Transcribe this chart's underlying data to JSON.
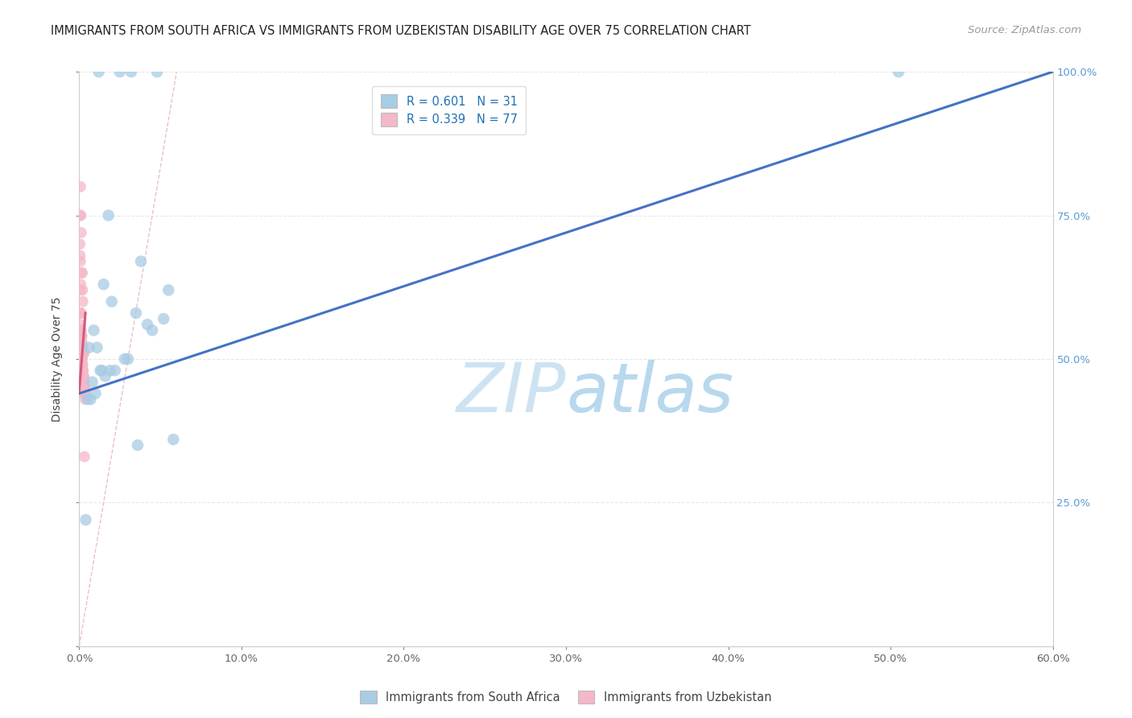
{
  "title": "IMMIGRANTS FROM SOUTH AFRICA VS IMMIGRANTS FROM UZBEKISTAN DISABILITY AGE OVER 75 CORRELATION CHART",
  "source": "Source: ZipAtlas.com",
  "ylabel_left": "Disability Age Over 75",
  "blue_R": 0.601,
  "blue_N": 31,
  "pink_R": 0.339,
  "pink_N": 77,
  "blue_color": "#a8cce4",
  "pink_color": "#f4b8c8",
  "blue_line_color": "#4472c4",
  "pink_line_color": "#d45a7a",
  "legend_blue_label": "Immigrants from South Africa",
  "legend_pink_label": "Immigrants from Uzbekistan",
  "blue_scatter_x": [
    1.2,
    4.8,
    3.2,
    2.5,
    1.8,
    3.8,
    5.5,
    2.0,
    1.5,
    0.9,
    1.1,
    0.6,
    2.8,
    3.5,
    5.2,
    4.2,
    1.4,
    0.7,
    1.0,
    0.5,
    2.2,
    3.0,
    4.5,
    1.6,
    0.8,
    5.8,
    3.6,
    1.3,
    0.4,
    50.5,
    1.9
  ],
  "blue_scatter_y": [
    100.0,
    100.0,
    100.0,
    100.0,
    75.0,
    67.0,
    62.0,
    60.0,
    63.0,
    55.0,
    52.0,
    52.0,
    50.0,
    58.0,
    57.0,
    56.0,
    48.0,
    43.0,
    44.0,
    43.0,
    48.0,
    50.0,
    55.0,
    47.0,
    46.0,
    36.0,
    35.0,
    48.0,
    22.0,
    100.0,
    48.0
  ],
  "pink_scatter_x": [
    0.08,
    0.05,
    0.1,
    0.12,
    0.15,
    0.18,
    0.2,
    0.22,
    0.08,
    0.06,
    0.14,
    0.16,
    0.25,
    0.3,
    0.1,
    0.04,
    0.07,
    0.09,
    0.11,
    0.13,
    0.17,
    0.19,
    0.21,
    0.08,
    0.06,
    0.12,
    0.15,
    0.18,
    0.22,
    0.25,
    0.3,
    0.08,
    0.1,
    0.14,
    0.16,
    0.2,
    0.22,
    0.26,
    0.28,
    0.05,
    0.09,
    0.11,
    0.13,
    0.17,
    0.19,
    0.23,
    0.27,
    0.29,
    0.33,
    0.35,
    0.06,
    0.08,
    0.12,
    0.14,
    0.18,
    0.2,
    0.24,
    0.28,
    0.32,
    0.34,
    0.07,
    0.11,
    0.13,
    0.15,
    0.19,
    0.21,
    0.25,
    0.29,
    0.31,
    0.36,
    0.08,
    0.1,
    0.14,
    0.16,
    0.22,
    0.26,
    0.32
  ],
  "pink_scatter_y": [
    80.0,
    75.0,
    75.0,
    72.0,
    65.0,
    65.0,
    62.0,
    60.0,
    58.0,
    55.0,
    54.0,
    53.0,
    52.0,
    51.0,
    50.0,
    70.0,
    67.0,
    63.0,
    58.0,
    55.0,
    54.0,
    52.0,
    51.0,
    50.0,
    49.0,
    48.0,
    47.0,
    46.0,
    46.0,
    45.0,
    44.0,
    55.0,
    52.0,
    51.0,
    50.0,
    49.0,
    48.0,
    47.0,
    46.0,
    68.0,
    58.0,
    54.0,
    52.0,
    50.0,
    49.0,
    48.0,
    47.0,
    46.0,
    45.0,
    44.0,
    62.0,
    56.0,
    53.0,
    51.0,
    50.0,
    48.0,
    47.0,
    46.0,
    45.0,
    44.0,
    58.0,
    54.0,
    52.0,
    50.0,
    49.0,
    48.0,
    47.0,
    46.0,
    44.0,
    43.0,
    55.0,
    52.0,
    51.0,
    50.0,
    48.0,
    46.0,
    33.0
  ],
  "blue_trend_x": [
    0.0,
    60.0
  ],
  "blue_trend_y": [
    44.0,
    100.0
  ],
  "pink_trend_x": [
    0.0,
    0.38
  ],
  "pink_trend_y": [
    44.5,
    58.0
  ],
  "diag_line_x": [
    0.0,
    6.0
  ],
  "diag_line_y": [
    0.0,
    100.0
  ],
  "watermark_zip": "ZIP",
  "watermark_atlas": "atlas",
  "watermark_color": "#ddeef8",
  "grid_color": "#e8e8e8",
  "background_color": "#ffffff",
  "xmin": 0.0,
  "xmax": 60.0,
  "ymin": 0.0,
  "ymax": 100.0,
  "xtick_vals": [
    0,
    10,
    20,
    30,
    40,
    50,
    60
  ],
  "title_fontsize": 10.5,
  "axis_label_fontsize": 10,
  "tick_fontsize": 9.5,
  "legend_fontsize": 10.5,
  "source_fontsize": 9.5
}
